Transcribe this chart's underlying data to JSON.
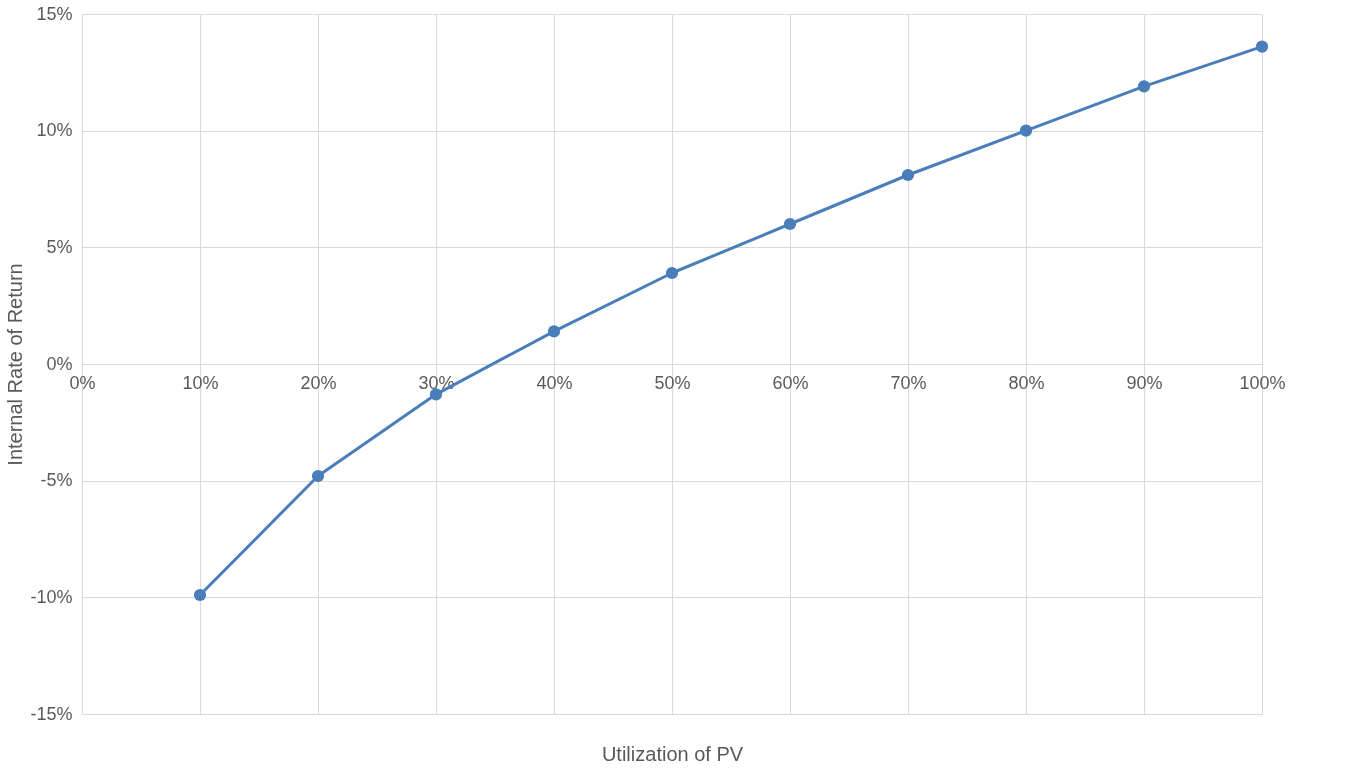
{
  "chart_data": {
    "type": "line",
    "xlabel": "Utilization of PV",
    "ylabel": "Internal Rate of Return",
    "x": [
      10,
      20,
      30,
      40,
      50,
      60,
      70,
      80,
      90,
      100
    ],
    "series": [
      {
        "color": "#4a7ebb",
        "values": [
          -9.9,
          -4.8,
          -1.3,
          1.4,
          3.9,
          6.0,
          8.1,
          10.0,
          11.9,
          13.6
        ]
      }
    ],
    "xlim": [
      0,
      100
    ],
    "xticks": [
      {
        "value": 0,
        "label": "0%"
      },
      {
        "value": 10,
        "label": "10%"
      },
      {
        "value": 20,
        "label": "20%"
      },
      {
        "value": 30,
        "label": "30%"
      },
      {
        "value": 40,
        "label": "40%"
      },
      {
        "value": 50,
        "label": "50%"
      },
      {
        "value": 60,
        "label": "60%"
      },
      {
        "value": 70,
        "label": "70%"
      },
      {
        "value": 80,
        "label": "80%"
      },
      {
        "value": 90,
        "label": "90%"
      },
      {
        "value": 100,
        "label": "100%"
      }
    ],
    "ylim": [
      -15,
      15
    ],
    "yticks": [
      {
        "value": -15,
        "label": "-15%"
      },
      {
        "value": -10,
        "label": "-10%"
      },
      {
        "value": -5,
        "label": "-5%"
      },
      {
        "value": 0,
        "label": "0%"
      },
      {
        "value": 5,
        "label": "5%"
      },
      {
        "value": 10,
        "label": "10%"
      },
      {
        "value": 15,
        "label": "15%"
      }
    ],
    "grid": true,
    "marker": "circle",
    "line_style": "solid"
  }
}
